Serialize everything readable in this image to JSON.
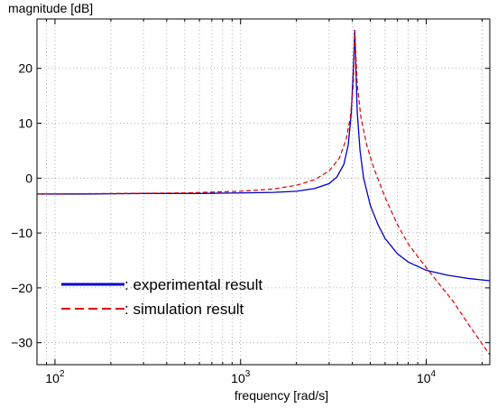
{
  "chart_data": {
    "type": "line",
    "title": "",
    "ylabel": "magnitude [dB]",
    "xlabel": "frequency [rad/s]",
    "xscale": "log",
    "xlim": [
      80,
      22000
    ],
    "ylim": [
      -34,
      29
    ],
    "grid": true,
    "legend_position": "bottom-left",
    "y_ticks": [
      20,
      10,
      0,
      -10,
      -20,
      -30
    ],
    "y_tick_labels": [
      "20",
      "10",
      "0",
      "−10",
      "−20",
      "−30"
    ],
    "x_ticks": [
      {
        "value": 100,
        "base": "10",
        "exp": "2"
      },
      {
        "value": 1000,
        "base": "10",
        "exp": "3"
      },
      {
        "value": 10000,
        "base": "10",
        "exp": "4"
      }
    ],
    "series": [
      {
        "name": ": experimental result",
        "color": "#0000cc",
        "dash": "solid",
        "points": [
          [
            80,
            -2.9
          ],
          [
            150,
            -2.9
          ],
          [
            300,
            -2.8
          ],
          [
            600,
            -2.8
          ],
          [
            1000,
            -2.7
          ],
          [
            1500,
            -2.6
          ],
          [
            2000,
            -2.4
          ],
          [
            2500,
            -1.9
          ],
          [
            3000,
            -1.0
          ],
          [
            3300,
            0.2
          ],
          [
            3600,
            2.5
          ],
          [
            3800,
            6.0
          ],
          [
            3950,
            12.0
          ],
          [
            4050,
            20.0
          ],
          [
            4120,
            27.0
          ],
          [
            4180,
            20.0
          ],
          [
            4250,
            12.0
          ],
          [
            4400,
            5.0
          ],
          [
            4600,
            0.0
          ],
          [
            5000,
            -5.0
          ],
          [
            5500,
            -8.5
          ],
          [
            6000,
            -11.0
          ],
          [
            7000,
            -13.8
          ],
          [
            8000,
            -15.3
          ],
          [
            10000,
            -16.8
          ],
          [
            13000,
            -17.7
          ],
          [
            17000,
            -18.3
          ],
          [
            22000,
            -18.7
          ]
        ]
      },
      {
        "name": ": simulation result",
        "color": "#dd0000",
        "dash": "dashed",
        "points": [
          [
            80,
            -2.9
          ],
          [
            200,
            -2.8
          ],
          [
            500,
            -2.7
          ],
          [
            1000,
            -2.4
          ],
          [
            1500,
            -2.0
          ],
          [
            2000,
            -1.3
          ],
          [
            2500,
            -0.3
          ],
          [
            3000,
            1.3
          ],
          [
            3400,
            3.6
          ],
          [
            3700,
            7.0
          ],
          [
            3900,
            11.0
          ],
          [
            4050,
            17.0
          ],
          [
            4120,
            27.0
          ],
          [
            4250,
            17.0
          ],
          [
            4450,
            11.0
          ],
          [
            4800,
            5.8
          ],
          [
            5200,
            2.0
          ],
          [
            6000,
            -3.5
          ],
          [
            7000,
            -8.5
          ],
          [
            8000,
            -12.0
          ],
          [
            9000,
            -14.3
          ],
          [
            10000,
            -16.3
          ],
          [
            12000,
            -19.7
          ],
          [
            14000,
            -22.5
          ],
          [
            17000,
            -26.8
          ],
          [
            22000,
            -32.2
          ]
        ]
      }
    ]
  }
}
